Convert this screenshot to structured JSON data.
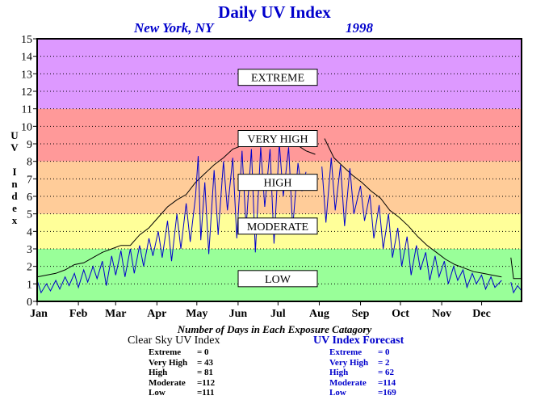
{
  "title": "Daily UV Index",
  "location": "New York, NY",
  "year": "1998",
  "ylabel_chars": [
    "U",
    "V",
    "",
    "I",
    "n",
    "d",
    "e",
    "x"
  ],
  "colors": {
    "extreme": "#dd99ff",
    "very_high": "#ff9999",
    "high": "#ffcc99",
    "moderate": "#ffff99",
    "low": "#99ff99",
    "clear_line": "#000000",
    "forecast_line": "#0000cc",
    "title": "#0000cc"
  },
  "stats": {
    "caption": "Number of Days in Each Exposure Catagory",
    "clear": {
      "title": "Clear Sky UV Index",
      "rows": [
        {
          "label": "Extreme",
          "value": "=    0"
        },
        {
          "label": "Very High",
          "value": "=  43"
        },
        {
          "label": "High",
          "value": "=  81"
        },
        {
          "label": "Moderate",
          "value": "=112"
        },
        {
          "label": "Low",
          "value": "=111"
        }
      ]
    },
    "forecast": {
      "title": "UV Index Forecast",
      "rows": [
        {
          "label": "Extreme",
          "value": "=    0"
        },
        {
          "label": "Very High",
          "value": "=    2"
        },
        {
          "label": "High",
          "value": "=  62"
        },
        {
          "label": "Moderate",
          "value": "=114"
        },
        {
          "label": "Low",
          "value": "=169"
        }
      ]
    }
  },
  "chart_data": {
    "type": "line",
    "title": "Daily UV Index",
    "subtitle": "New York, NY 1998",
    "ylabel": "UV Index",
    "xlabel": "",
    "ylim": [
      0,
      15
    ],
    "yticks": [
      "0",
      "1",
      "2",
      "3",
      "4",
      "5",
      "6",
      "7",
      "8",
      "9",
      "10",
      "11",
      "12",
      "13",
      "14",
      "15"
    ],
    "xlim": [
      1,
      365
    ],
    "grid": true,
    "months": [
      "Jan",
      "Feb",
      "Mar",
      "Apr",
      "May",
      "Jun",
      "Jul",
      "Aug",
      "Sep",
      "Oct",
      "Nov",
      "Dec"
    ],
    "bands": [
      {
        "label": "LOW",
        "from": 0,
        "to": 3,
        "label_y": 1.3
      },
      {
        "label": "MODERATE",
        "from": 3,
        "to": 5,
        "label_y": 4.3
      },
      {
        "label": "HIGH",
        "from": 5,
        "to": 8,
        "label_y": 6.8
      },
      {
        "label": "VERY HIGH",
        "from": 8,
        "to": 11,
        "label_y": 9.3
      },
      {
        "label": "EXTREME",
        "from": 11,
        "to": 15,
        "label_y": 12.8
      }
    ],
    "series": [
      {
        "name": "Clear Sky UV Index",
        "points": [
          [
            1,
            1.4
          ],
          [
            8,
            1.5
          ],
          [
            15,
            1.6
          ],
          [
            22,
            1.8
          ],
          [
            29,
            2.1
          ],
          [
            36,
            2.2
          ],
          [
            43,
            2.5
          ],
          [
            50,
            2.8
          ],
          [
            57,
            3.0
          ],
          [
            64,
            3.2
          ],
          [
            71,
            3.2
          ],
          [
            78,
            3.8
          ],
          [
            85,
            4.2
          ],
          [
            92,
            4.8
          ],
          [
            99,
            5.4
          ],
          [
            106,
            5.8
          ],
          [
            113,
            6.1
          ],
          [
            120,
            6.8
          ],
          [
            127,
            7.3
          ],
          [
            134,
            7.8
          ],
          [
            141,
            8.2
          ],
          [
            148,
            8.7
          ],
          [
            155,
            8.9
          ],
          [
            162,
            9.0
          ],
          [
            169,
            9.1
          ],
          [
            176,
            9.2
          ],
          [
            183,
            9.3
          ],
          [
            190,
            9.2
          ],
          [
            197,
            8.9
          ],
          [
            203,
            8.6
          ],
          [
            210,
            8.4
          ],
          [
            213,
            null
          ],
          [
            217,
            9.3
          ],
          [
            224,
            8.2
          ],
          [
            231,
            7.7
          ],
          [
            238,
            7.2
          ],
          [
            245,
            6.8
          ],
          [
            252,
            6.3
          ],
          [
            259,
            5.9
          ],
          [
            266,
            5.2
          ],
          [
            273,
            4.8
          ],
          [
            280,
            4.3
          ],
          [
            287,
            3.7
          ],
          [
            294,
            3.2
          ],
          [
            301,
            2.8
          ],
          [
            308,
            2.4
          ],
          [
            315,
            2.1
          ],
          [
            322,
            1.9
          ],
          [
            329,
            1.7
          ],
          [
            336,
            1.6
          ],
          [
            343,
            1.5
          ],
          [
            350,
            1.4
          ],
          [
            352,
            null
          ],
          [
            357,
            2.5
          ],
          [
            359,
            1.3
          ],
          [
            365,
            1.3
          ]
        ]
      },
      {
        "name": "UV Index Forecast",
        "points": [
          [
            1,
            1.2
          ],
          [
            4,
            0.5
          ],
          [
            8,
            1.0
          ],
          [
            11,
            0.6
          ],
          [
            15,
            1.2
          ],
          [
            18,
            0.7
          ],
          [
            22,
            1.4
          ],
          [
            25,
            0.9
          ],
          [
            29,
            1.6
          ],
          [
            32,
            0.8
          ],
          [
            36,
            1.8
          ],
          [
            39,
            1.1
          ],
          [
            43,
            2.0
          ],
          [
            46,
            1.3
          ],
          [
            50,
            2.3
          ],
          [
            53,
            0.9
          ],
          [
            57,
            2.6
          ],
          [
            60,
            1.5
          ],
          [
            64,
            2.9
          ],
          [
            67,
            1.4
          ],
          [
            71,
            3.0
          ],
          [
            74,
            1.6
          ],
          [
            78,
            3.2
          ],
          [
            81,
            2.0
          ],
          [
            85,
            3.6
          ],
          [
            88,
            2.6
          ],
          [
            92,
            4.0
          ],
          [
            95,
            2.5
          ],
          [
            99,
            4.6
          ],
          [
            102,
            2.3
          ],
          [
            106,
            5.0
          ],
          [
            109,
            3.0
          ],
          [
            113,
            5.6
          ],
          [
            116,
            3.4
          ],
          [
            120,
            6.0
          ],
          [
            122,
            8.3
          ],
          [
            124,
            3.5
          ],
          [
            127,
            6.8
          ],
          [
            130,
            2.7
          ],
          [
            134,
            7.5
          ],
          [
            137,
            3.8
          ],
          [
            141,
            8.0
          ],
          [
            144,
            5.2
          ],
          [
            148,
            8.2
          ],
          [
            151,
            3.6
          ],
          [
            155,
            8.6
          ],
          [
            158,
            4.2
          ],
          [
            162,
            8.7
          ],
          [
            165,
            2.8
          ],
          [
            169,
            8.8
          ],
          [
            172,
            5.4
          ],
          [
            176,
            8.7
          ],
          [
            179,
            3.3
          ],
          [
            183,
            9.0
          ],
          [
            186,
            6.0
          ],
          [
            190,
            8.8
          ],
          [
            193,
            4.2
          ],
          [
            197,
            7.9
          ],
          [
            200,
            6.3
          ],
          [
            203,
            7.4
          ],
          [
            206,
            null
          ],
          [
            215,
            7.7
          ],
          [
            218,
            4.5
          ],
          [
            222,
            8.2
          ],
          [
            225,
            5.2
          ],
          [
            229,
            7.8
          ],
          [
            232,
            4.3
          ],
          [
            236,
            7.6
          ],
          [
            239,
            5.0
          ],
          [
            244,
            6.6
          ],
          [
            247,
            4.6
          ],
          [
            251,
            6.1
          ],
          [
            254,
            3.6
          ],
          [
            258,
            5.5
          ],
          [
            261,
            3.0
          ],
          [
            265,
            5.0
          ],
          [
            268,
            2.5
          ],
          [
            272,
            4.2
          ],
          [
            275,
            2.0
          ],
          [
            279,
            3.7
          ],
          [
            282,
            1.5
          ],
          [
            286,
            3.2
          ],
          [
            289,
            1.8
          ],
          [
            293,
            2.8
          ],
          [
            296,
            1.2
          ],
          [
            300,
            2.6
          ],
          [
            303,
            1.4
          ],
          [
            307,
            2.3
          ],
          [
            310,
            1.0
          ],
          [
            314,
            2.0
          ],
          [
            317,
            1.2
          ],
          [
            321,
            1.8
          ],
          [
            324,
            0.8
          ],
          [
            328,
            1.6
          ],
          [
            331,
            1.0
          ],
          [
            335,
            1.5
          ],
          [
            338,
            0.7
          ],
          [
            342,
            1.4
          ],
          [
            345,
            0.8
          ],
          [
            350,
            1.2
          ],
          [
            353,
            null
          ],
          [
            357,
            1.1
          ],
          [
            359,
            0.5
          ],
          [
            362,
            0.9
          ],
          [
            365,
            0.6
          ]
        ]
      }
    ]
  }
}
